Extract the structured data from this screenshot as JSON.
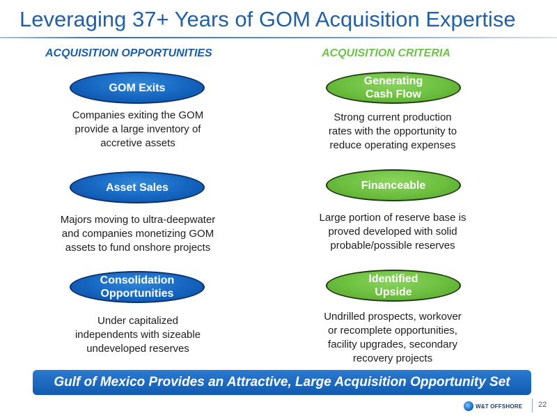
{
  "title": "Leveraging 37+ Years of GOM Acquisition Expertise",
  "left_column": {
    "heading": "ACQUISITION OPPORTUNITIES",
    "items": [
      {
        "label": "GOM Exits",
        "description": "Companies exiting the GOM\nprovide a large inventory of\naccretive assets"
      },
      {
        "label": "Asset Sales",
        "description": "Majors moving to ultra-deepwater\nand companies monetizing GOM\nassets to fund onshore projects"
      },
      {
        "label": "Consolidation\nOpportunities",
        "description": "Under capitalized\nindependents with sizeable\nundeveloped reserves"
      }
    ]
  },
  "right_column": {
    "heading": "ACQUISITION CRITERIA",
    "items": [
      {
        "label": "Generating\nCash Flow",
        "description": "Strong current production\nrates with the opportunity to\nreduce operating expenses"
      },
      {
        "label": "Financeable",
        "description": "Large portion of reserve base is\nproved developed with solid\nprobable/possible reserves"
      },
      {
        "label": "Identified\nUpside",
        "description": "Undrilled prospects, workover\nor recomplete opportunities,\nfacility upgrades, secondary\nrecovery projects"
      }
    ]
  },
  "banner": "Gulf of Mexico Provides an Attractive, Large Acquisition Opportunity Set",
  "footer": {
    "logo_text": "W&T OFFSHORE",
    "page_number": "22"
  },
  "colors": {
    "title": "#2160a8",
    "left_heading": "#1a5ea8",
    "right_heading": "#6cc24a",
    "blue_oval": "#1565c0",
    "green_oval": "#6cbf3f",
    "banner": "#1a68c0"
  }
}
